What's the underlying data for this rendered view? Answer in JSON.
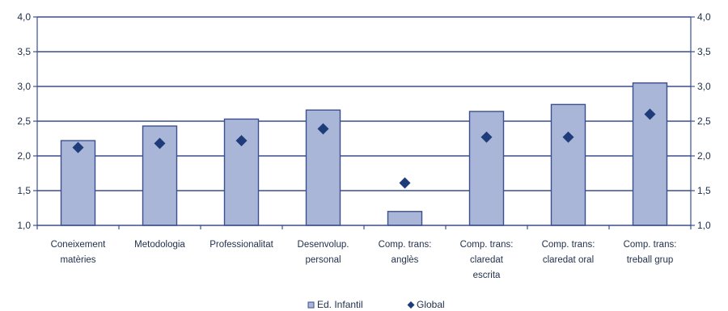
{
  "chart_data": {
    "type": "bar",
    "categories": [
      [
        "Coneixement",
        "matèries"
      ],
      [
        "Metodologia"
      ],
      [
        "Professionalitat"
      ],
      [
        "Desenvolup.",
        "personal"
      ],
      [
        "Comp. trans:",
        "anglès"
      ],
      [
        "Comp. trans:",
        "claredat",
        "escrita"
      ],
      [
        "Comp. trans:",
        "claredat oral"
      ],
      [
        "Comp. trans:",
        "treball grup"
      ]
    ],
    "series": [
      {
        "name": "Ed. Infantil",
        "kind": "bar",
        "values": [
          2.22,
          2.43,
          2.53,
          2.66,
          1.2,
          2.64,
          2.74,
          3.05
        ]
      },
      {
        "name": "Global",
        "kind": "marker",
        "values": [
          2.12,
          2.18,
          2.22,
          2.39,
          1.61,
          2.27,
          2.27,
          2.6
        ]
      }
    ],
    "ylim": [
      1.0,
      4.0
    ],
    "yticks": [
      "1,0",
      "1,5",
      "2,0",
      "2,5",
      "3,0",
      "3,5",
      "4,0"
    ],
    "ytick_values": [
      1.0,
      1.5,
      2.0,
      2.5,
      3.0,
      3.5,
      4.0
    ],
    "grid": true,
    "legend_position": "bottom-center",
    "colors": {
      "bar_fill": "#a9b6d8",
      "bar_stroke": "#3b4f8f",
      "marker": "#1f3c7a",
      "grid": "#3b4f8f",
      "axis": "#3b4f8f",
      "text": "#1f2f4a"
    }
  }
}
